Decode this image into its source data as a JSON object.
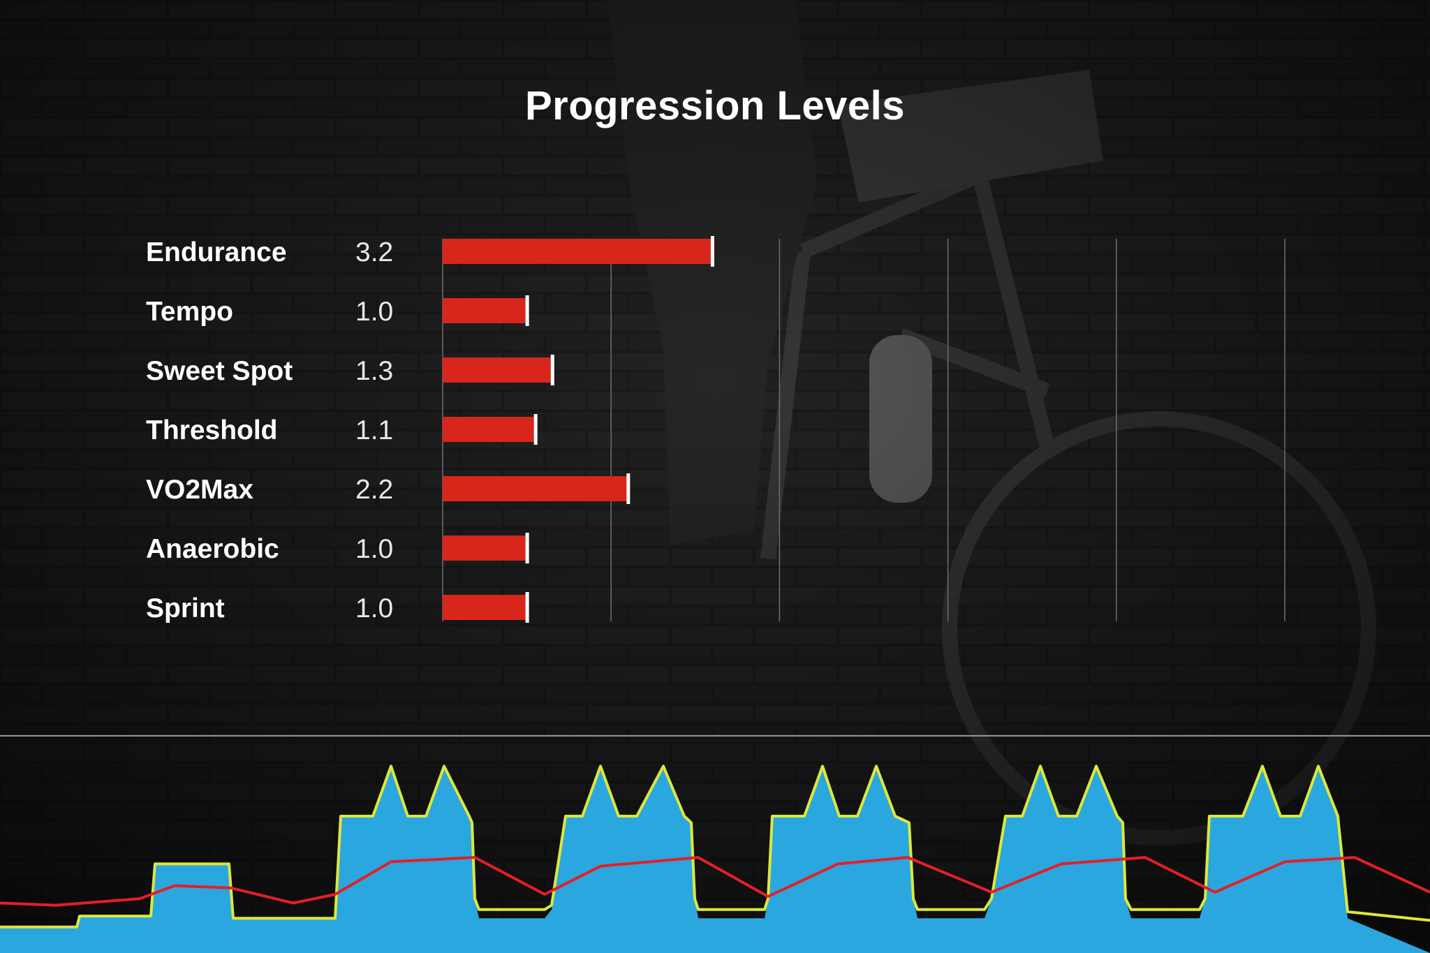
{
  "chart_data": [
    {
      "type": "bar",
      "orientation": "horizontal",
      "title": "Progression Levels",
      "categories": [
        "Endurance",
        "Tempo",
        "Sweet Spot",
        "Threshold",
        "VO2Max",
        "Anaerobic",
        "Sprint"
      ],
      "values": [
        3.2,
        1.0,
        1.3,
        1.1,
        2.2,
        1.0,
        1.0
      ],
      "value_labels": [
        "3.2",
        "1.0",
        "1.3",
        "1.1",
        "2.2",
        "1.0",
        "1.0"
      ],
      "xlim": [
        0,
        10
      ],
      "grid": true,
      "bar_color": "#d9261c",
      "marker_color": "#ffffff"
    },
    {
      "type": "area",
      "description_free": true,
      "grid": false,
      "reference_line": 1.0,
      "ylim": [
        0,
        1.35
      ],
      "series": [
        {
          "type": "area",
          "color": "#2aa7df",
          "x": [
            0,
            110,
            114,
            216,
            222,
            328,
            334,
            480,
            488,
            534,
            560,
            584,
            610,
            636,
            672,
            676,
            680,
            686,
            780,
            790,
            810,
            834,
            860,
            886,
            912,
            950,
            980,
            990,
            995,
            1000,
            1095,
            1100,
            1106,
            1152,
            1178,
            1202,
            1228,
            1255,
            1282,
            1302,
            1308,
            1314,
            1410,
            1420,
            1440,
            1464,
            1490,
            1516,
            1542,
            1570,
            1600,
            1608,
            1612,
            1620,
            1718,
            1726,
            1732,
            1780,
            1808,
            1834,
            1862,
            1888,
            1916,
            1930,
            2048
          ],
          "y": [
            0.12,
            0.12,
            0.17,
            0.17,
            0.41,
            0.41,
            0.16,
            0.16,
            0.63,
            0.63,
            0.86,
            0.63,
            0.63,
            0.86,
            0.63,
            0.6,
            0.25,
            0.16,
            0.16,
            0.2,
            0.63,
            0.63,
            0.86,
            0.63,
            0.63,
            0.86,
            0.63,
            0.6,
            0.25,
            0.16,
            0.16,
            0.25,
            0.63,
            0.63,
            0.86,
            0.63,
            0.63,
            0.86,
            0.63,
            0.6,
            0.25,
            0.16,
            0.16,
            0.25,
            0.63,
            0.63,
            0.86,
            0.63,
            0.63,
            0.86,
            0.63,
            0.6,
            0.25,
            0.16,
            0.16,
            0.25,
            0.63,
            0.63,
            0.86,
            0.63,
            0.63,
            0.86,
            0.63,
            0.16,
            0.0
          ]
        },
        {
          "type": "line",
          "color": "#dde83a",
          "x": [
            0,
            110,
            114,
            216,
            222,
            328,
            334,
            480,
            488,
            534,
            560,
            584,
            610,
            636,
            672,
            676,
            680,
            686,
            780,
            790,
            810,
            834,
            860,
            886,
            912,
            950,
            980,
            990,
            995,
            1000,
            1095,
            1100,
            1106,
            1152,
            1178,
            1202,
            1228,
            1255,
            1282,
            1302,
            1308,
            1314,
            1410,
            1420,
            1440,
            1464,
            1490,
            1516,
            1542,
            1570,
            1600,
            1608,
            1612,
            1620,
            1718,
            1726,
            1732,
            1780,
            1808,
            1834,
            1862,
            1888,
            1916,
            1930,
            2048
          ],
          "y": [
            0.12,
            0.12,
            0.17,
            0.17,
            0.41,
            0.41,
            0.16,
            0.16,
            0.63,
            0.63,
            0.86,
            0.63,
            0.63,
            0.86,
            0.63,
            0.6,
            0.25,
            0.2,
            0.2,
            0.22,
            0.63,
            0.63,
            0.86,
            0.63,
            0.63,
            0.86,
            0.63,
            0.6,
            0.25,
            0.2,
            0.2,
            0.25,
            0.63,
            0.63,
            0.86,
            0.63,
            0.63,
            0.86,
            0.63,
            0.6,
            0.25,
            0.2,
            0.2,
            0.25,
            0.63,
            0.63,
            0.86,
            0.63,
            0.63,
            0.86,
            0.63,
            0.6,
            0.25,
            0.2,
            0.2,
            0.25,
            0.63,
            0.63,
            0.86,
            0.63,
            0.63,
            0.86,
            0.63,
            0.19,
            0.15
          ]
        },
        {
          "type": "line",
          "color": "#e41f26",
          "x": [
            0,
            80,
            200,
            250,
            330,
            420,
            480,
            560,
            680,
            780,
            860,
            1000,
            1100,
            1200,
            1300,
            1420,
            1520,
            1640,
            1740,
            1840,
            1940,
            2048
          ],
          "y": [
            0.23,
            0.22,
            0.25,
            0.31,
            0.3,
            0.23,
            0.27,
            0.42,
            0.44,
            0.27,
            0.4,
            0.44,
            0.26,
            0.41,
            0.44,
            0.28,
            0.41,
            0.44,
            0.28,
            0.42,
            0.44,
            0.28
          ]
        }
      ]
    }
  ]
}
